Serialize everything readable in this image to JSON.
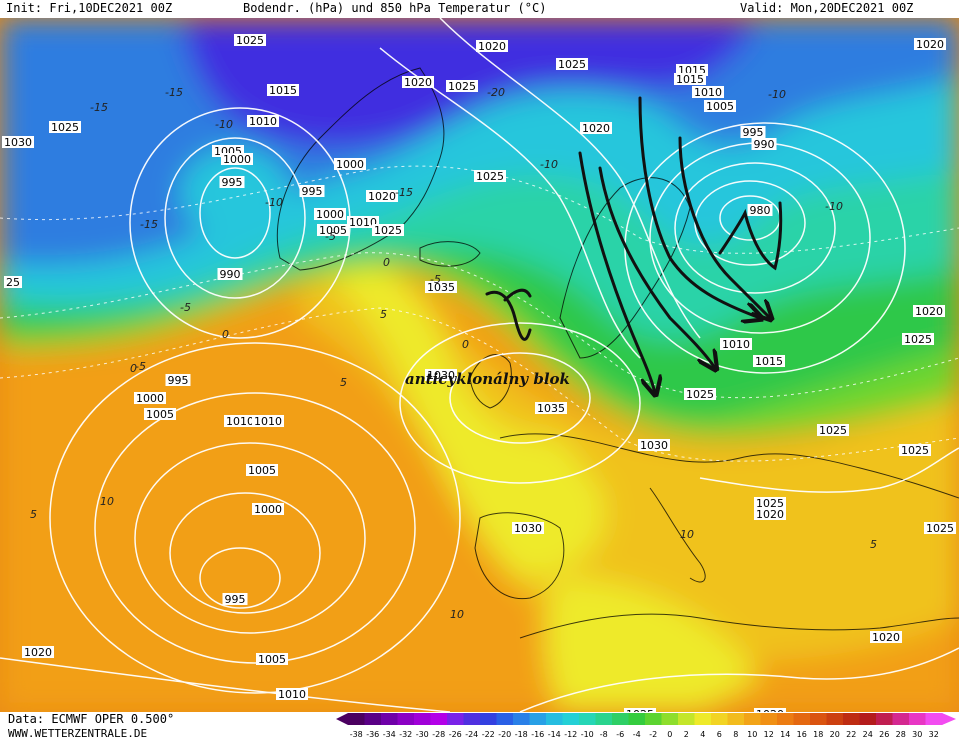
{
  "header": {
    "init": "Init: Fri,10DEC2021 00Z",
    "title": "Bodendr. (hPa) und 850 hPa Temperatur (°C)",
    "valid": "Valid: Mon,20DEC2021 00Z"
  },
  "footer": {
    "source": "Data: ECMWF OPER 0.500°",
    "website": "WWW.WETTERZENTRALE.DE"
  },
  "annotation": "anticyklonálny blok",
  "colors": {
    "deep_blue": "#3f2fe0",
    "blue": "#2f7de0",
    "cyan": "#26c6dc",
    "teal": "#29d3a8",
    "green": "#2ec84a",
    "light_green": "#6fd62f",
    "yellow": "#eeea2a",
    "gold": "#f0c21e",
    "orange": "#f29f16",
    "dark_orange": "#ea8b12",
    "isobar": "#ffffff",
    "annotation_arrow": "#111111"
  },
  "pressure_labels": [
    {
      "text": "1020"
    },
    {
      "text": "1025"
    },
    {
      "text": "1025"
    },
    {
      "text": "1020"
    },
    {
      "text": "1025"
    },
    {
      "text": "1015"
    },
    {
      "text": "1010"
    },
    {
      "text": "1005"
    },
    {
      "text": "1000"
    },
    {
      "text": "1015"
    },
    {
      "text": "1030"
    },
    {
      "text": "1025"
    },
    {
      "text": "1015"
    },
    {
      "text": "1010"
    },
    {
      "text": "1005"
    },
    {
      "text": "1000"
    },
    {
      "text": "995"
    },
    {
      "text": "990"
    },
    {
      "text": "995"
    },
    {
      "text": "1000"
    },
    {
      "text": "1005"
    },
    {
      "text": "1010"
    },
    {
      "text": "1020"
    },
    {
      "text": "1025"
    },
    {
      "text": "1020"
    },
    {
      "text": "1025"
    },
    {
      "text": "995"
    },
    {
      "text": "990"
    },
    {
      "text": "980"
    },
    {
      "text": "1035"
    },
    {
      "text": "1030"
    },
    {
      "text": "1035"
    },
    {
      "text": "1010"
    },
    {
      "text": "1015"
    },
    {
      "text": "1025"
    },
    {
      "text": "1020"
    },
    {
      "text": "1025"
    },
    {
      "text": "25"
    },
    {
      "text": "995"
    },
    {
      "text": "1000"
    },
    {
      "text": "1005"
    },
    {
      "text": "1010"
    },
    {
      "text": "1010"
    },
    {
      "text": "1005"
    },
    {
      "text": "1000"
    },
    {
      "text": "995"
    },
    {
      "text": "1005"
    },
    {
      "text": "1010"
    },
    {
      "text": "1020"
    },
    {
      "text": "1030"
    },
    {
      "text": "1030"
    },
    {
      "text": "1025"
    },
    {
      "text": "1025"
    },
    {
      "text": "1025"
    },
    {
      "text": "1020"
    },
    {
      "text": "1020"
    },
    {
      "text": "1025"
    },
    {
      "text": "1020"
    },
    {
      "text": "1025"
    },
    {
      "text": "1020"
    }
  ],
  "temperature_labels": [
    {
      "text": "-15"
    },
    {
      "text": "-20"
    },
    {
      "text": "-15"
    },
    {
      "text": "-10"
    },
    {
      "text": "-15"
    },
    {
      "text": "-10"
    },
    {
      "text": "-15"
    },
    {
      "text": "-10"
    },
    {
      "text": "-5"
    },
    {
      "text": "0"
    },
    {
      "text": "-5"
    },
    {
      "text": "0"
    },
    {
      "text": "-10"
    },
    {
      "text": "-10"
    },
    {
      "text": "-5"
    },
    {
      "text": "0"
    },
    {
      "text": "5"
    },
    {
      "text": "0"
    },
    {
      "text": "-5"
    },
    {
      "text": "5"
    },
    {
      "text": "10"
    },
    {
      "text": "5"
    },
    {
      "text": "10"
    },
    {
      "text": "10"
    },
    {
      "text": "5"
    }
  ],
  "color_scale": {
    "values": [
      "-38",
      "-36",
      "-34",
      "-32",
      "-30",
      "-28",
      "-26",
      "-24",
      "-22",
      "-20",
      "-18",
      "-16",
      "-14",
      "-12",
      "-10",
      "-8",
      "-6",
      "-4",
      "-2",
      "0",
      "2",
      "4",
      "6",
      "8",
      "10",
      "12",
      "14",
      "16",
      "18",
      "20",
      "22",
      "24",
      "26",
      "28",
      "30",
      "32"
    ],
    "colors": [
      "#4b0060",
      "#5a0086",
      "#6f00a8",
      "#8b00c4",
      "#a000d8",
      "#b300e8",
      "#7a22e8",
      "#5030e0",
      "#3340e0",
      "#2a60e6",
      "#2a80e8",
      "#28a0e6",
      "#26bde0",
      "#24d0d6",
      "#26d6b6",
      "#2ad48e",
      "#2ecf66",
      "#34cc3e",
      "#5cd430",
      "#8ede2c",
      "#c4e62a",
      "#eeea2a",
      "#f2d424",
      "#f2bc1e",
      "#f2a418",
      "#f09014",
      "#ec7c12",
      "#e46810",
      "#da5410",
      "#cc4010",
      "#be2c12",
      "#b41c1c",
      "#c01e50",
      "#d42890",
      "#e836c4",
      "#f24cf0"
    ]
  }
}
